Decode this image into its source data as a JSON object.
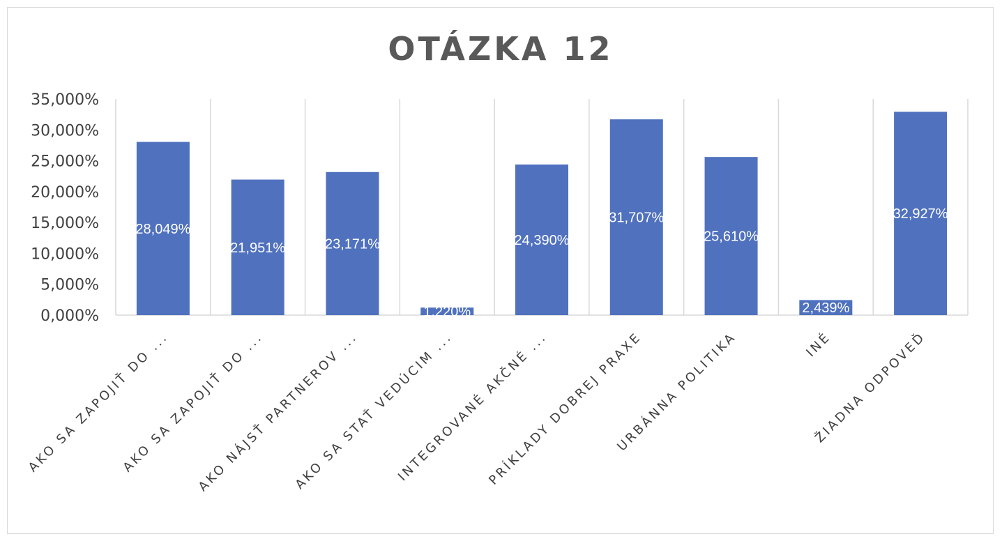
{
  "chart_data": {
    "type": "bar",
    "title": "OTÁZKA 12",
    "categories": [
      "AKO SA ZAPOJIŤ DO ...",
      "AKO SA ZAPOJIŤ DO ...",
      "AKO NÁJSŤ PARTNEROV ...",
      "AKO SA STAŤ VEDÚCIM ...",
      "INTEGROVANÉ AKČNÉ ...",
      "PRÍKLADY DOBREJ PRAXE",
      "URBÁNNA POLITIKA",
      "INÉ",
      "ŽIADNA ODPOVEĎ"
    ],
    "values": [
      28.049,
      21.951,
      23.171,
      1.22,
      24.39,
      31.707,
      25.61,
      2.439,
      32.927
    ],
    "data_labels": [
      "28,049%",
      "21,951%",
      "23,171%",
      "1,220%",
      "24,390%",
      "31,707%",
      "25,610%",
      "2,439%",
      "32,927%"
    ],
    "y_tick_labels": [
      "0,000%",
      "5,000%",
      "10,000%",
      "15,000%",
      "20,000%",
      "25,000%",
      "30,000%",
      "35,000%"
    ],
    "ylim": [
      0,
      35
    ],
    "xlabel": "",
    "ylabel": "",
    "grid": "vertical category separators",
    "legend": "none",
    "bar_color": "#4f71be",
    "grid_color": "#d9d9d9"
  }
}
